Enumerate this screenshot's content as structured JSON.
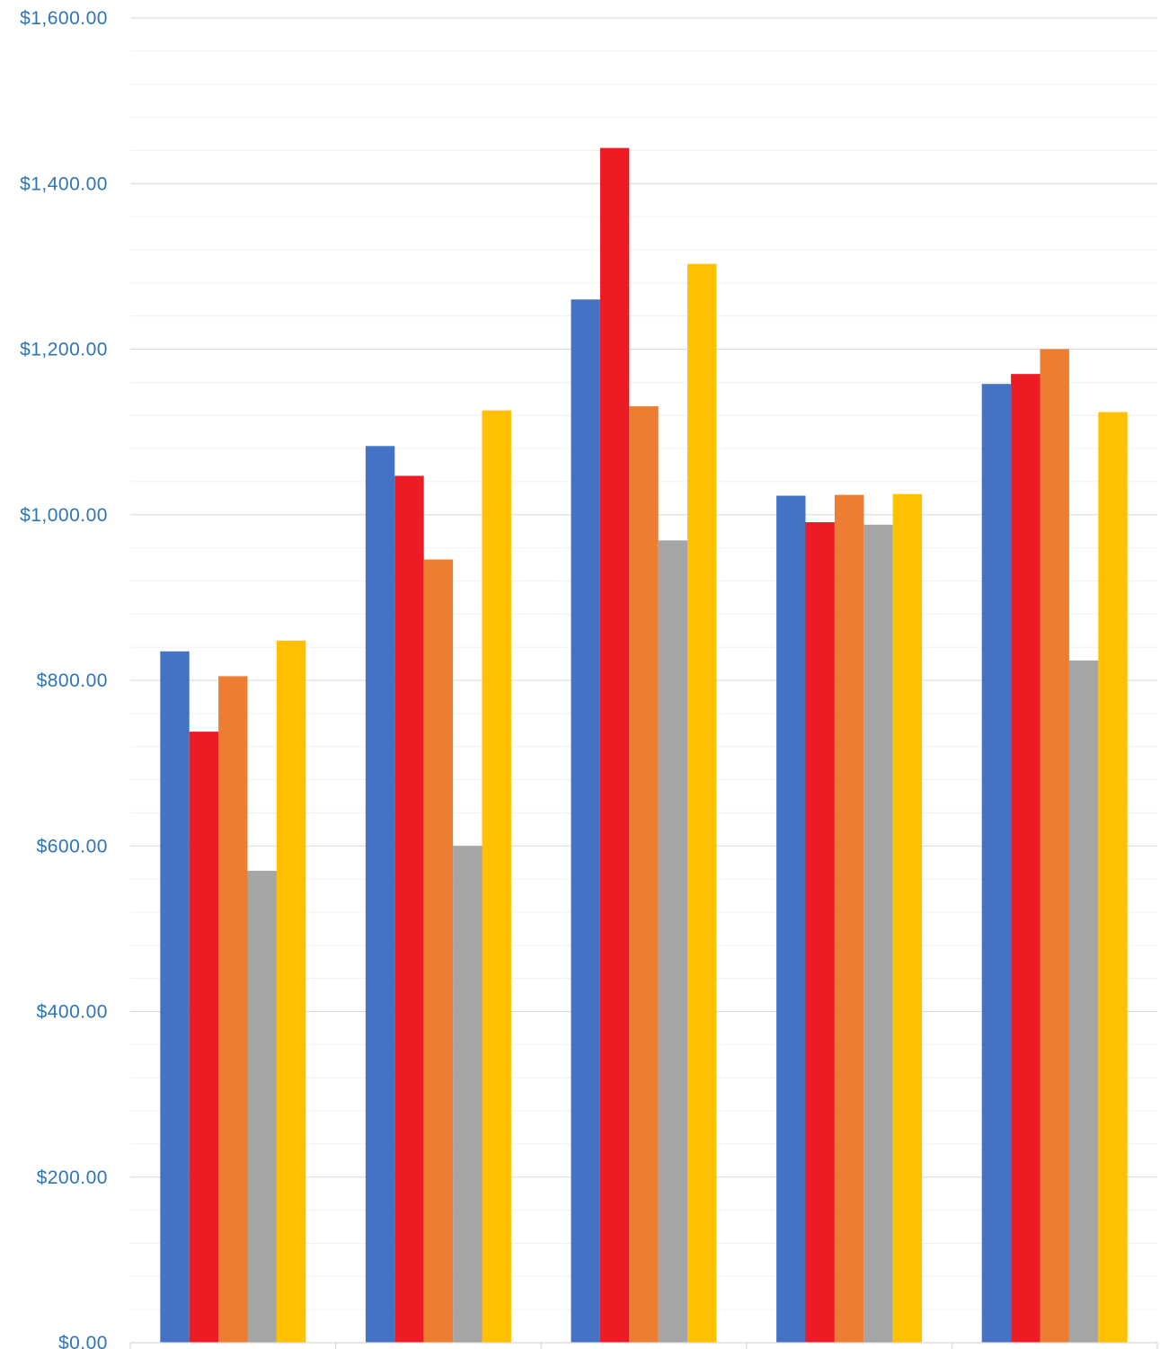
{
  "chart_data": {
    "type": "bar",
    "categories": [
      "",
      "",
      "",
      "",
      ""
    ],
    "series": [
      {
        "color": "#4472C4",
        "values": [
          835,
          1083,
          1260,
          1023,
          1158
        ]
      },
      {
        "color": "#ED1C24",
        "values": [
          738,
          1047,
          1443,
          991,
          1170
        ]
      },
      {
        "color": "#ED7D31",
        "values": [
          805,
          946,
          1131,
          1024,
          1200
        ]
      },
      {
        "color": "#A5A5A5",
        "values": [
          570,
          600,
          969,
          988,
          824
        ]
      },
      {
        "color": "#FFC000",
        "values": [
          848,
          1126,
          1303,
          1025,
          1124
        ]
      }
    ],
    "ylim": [
      0,
      1600
    ],
    "y_ticks": [
      0,
      200,
      400,
      600,
      800,
      1000,
      1200,
      1400,
      1600
    ],
    "y_tick_labels": [
      "$0.00",
      "$200.00",
      "$400.00",
      "$600.00",
      "$800.00",
      "$1,000.00",
      "$1,200.00",
      "$1,400.00",
      "$1,600.00"
    ],
    "minor_grid_step": 40,
    "grid": true,
    "legend": "none",
    "title": "",
    "xlabel": "",
    "ylabel": ""
  }
}
